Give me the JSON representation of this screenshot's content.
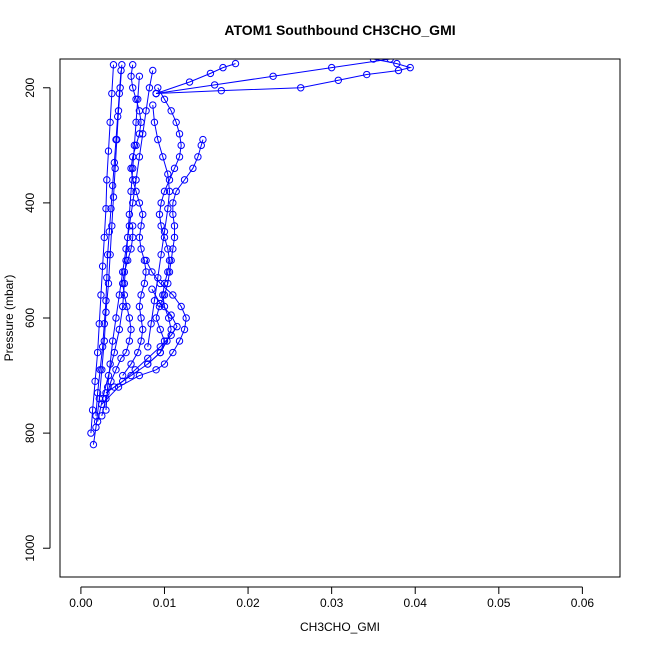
{
  "chart_data": {
    "type": "scatter",
    "title": "ATOM1 Southbound CH3CHO_GMI",
    "xlabel": "CH3CHO_GMI",
    "ylabel": "Pressure (mbar)",
    "xlim": [
      -0.0025,
      0.0645
    ],
    "ylim": [
      1050,
      150
    ],
    "y_reversed": true,
    "x_ticks": [
      0.0,
      0.01,
      0.02,
      0.03,
      0.04,
      0.05,
      0.06
    ],
    "x_tick_labels": [
      "0.00",
      "0.01",
      "0.02",
      "0.03",
      "0.04",
      "0.05",
      "0.06"
    ],
    "y_ticks": [
      200,
      400,
      600,
      800,
      1000
    ],
    "y_tick_labels": [
      "200",
      "400",
      "600",
      "800",
      "1000"
    ],
    "grid": false,
    "marker": "open-circle",
    "color": "#0000ff",
    "series": [
      {
        "points": [
          [
            0.0015,
            820
          ],
          [
            0.0018,
            790
          ],
          [
            0.0022,
            740
          ],
          [
            0.0025,
            690
          ],
          [
            0.0028,
            640
          ],
          [
            0.003,
            590
          ],
          [
            0.0033,
            540
          ],
          [
            0.0035,
            490
          ],
          [
            0.0037,
            440
          ],
          [
            0.0039,
            390
          ],
          [
            0.0041,
            340
          ],
          [
            0.0043,
            290
          ],
          [
            0.0045,
            240
          ],
          [
            0.0047,
            200
          ],
          [
            0.0049,
            160
          ]
        ]
      },
      {
        "points": [
          [
            0.0012,
            800
          ],
          [
            0.0014,
            760
          ],
          [
            0.0017,
            710
          ],
          [
            0.002,
            660
          ],
          [
            0.0022,
            610
          ],
          [
            0.0024,
            560
          ],
          [
            0.0026,
            510
          ],
          [
            0.0028,
            460
          ],
          [
            0.003,
            410
          ],
          [
            0.0031,
            360
          ],
          [
            0.0033,
            310
          ],
          [
            0.0035,
            260
          ],
          [
            0.0037,
            210
          ],
          [
            0.0039,
            160
          ]
        ]
      },
      {
        "points": [
          [
            0.002,
            780
          ],
          [
            0.0026,
            740
          ],
          [
            0.0033,
            700
          ],
          [
            0.004,
            660
          ],
          [
            0.0046,
            620
          ],
          [
            0.005,
            580
          ],
          [
            0.0052,
            540
          ],
          [
            0.0054,
            500
          ],
          [
            0.0056,
            460
          ],
          [
            0.0058,
            420
          ],
          [
            0.006,
            380
          ],
          [
            0.0062,
            340
          ],
          [
            0.0064,
            300
          ],
          [
            0.0066,
            260
          ],
          [
            0.0068,
            220
          ],
          [
            0.007,
            180
          ]
        ]
      },
      {
        "points": [
          [
            0.0025,
            750
          ],
          [
            0.0045,
            720
          ],
          [
            0.007,
            700
          ],
          [
            0.009,
            690
          ],
          [
            0.01,
            680
          ],
          [
            0.011,
            660
          ],
          [
            0.0118,
            640
          ],
          [
            0.0124,
            620
          ],
          [
            0.0126,
            600
          ],
          [
            0.012,
            580
          ],
          [
            0.011,
            560
          ],
          [
            0.0095,
            540
          ],
          [
            0.0085,
            520
          ],
          [
            0.0078,
            500
          ]
        ]
      },
      {
        "points": [
          [
            0.003,
            730
          ],
          [
            0.005,
            710
          ],
          [
            0.0065,
            690
          ],
          [
            0.008,
            670
          ],
          [
            0.0095,
            650
          ],
          [
            0.0108,
            630
          ],
          [
            0.0115,
            615
          ],
          [
            0.0108,
            595
          ],
          [
            0.0095,
            575
          ],
          [
            0.0085,
            550
          ]
        ]
      },
      {
        "points": [
          [
            0.008,
            680
          ],
          [
            0.0095,
            660
          ],
          [
            0.0103,
            640
          ],
          [
            0.0108,
            620
          ],
          [
            0.0105,
            600
          ],
          [
            0.01,
            580
          ],
          [
            0.0098,
            560
          ],
          [
            0.01,
            540
          ],
          [
            0.0104,
            520
          ],
          [
            0.0106,
            500
          ],
          [
            0.0104,
            480
          ],
          [
            0.01,
            460
          ],
          [
            0.0096,
            440
          ],
          [
            0.0094,
            420
          ],
          [
            0.0096,
            400
          ],
          [
            0.01,
            380
          ],
          [
            0.0106,
            360
          ],
          [
            0.0112,
            340
          ],
          [
            0.0118,
            320
          ],
          [
            0.012,
            300
          ],
          [
            0.0118,
            280
          ],
          [
            0.0114,
            260
          ],
          [
            0.0108,
            240
          ],
          [
            0.01,
            220
          ],
          [
            0.0092,
            200
          ]
        ]
      },
      {
        "points": [
          [
            0.004,
            720
          ],
          [
            0.006,
            700
          ],
          [
            0.008,
            680
          ],
          [
            0.0095,
            660
          ],
          [
            0.01,
            640
          ],
          [
            0.0095,
            620
          ],
          [
            0.009,
            600
          ],
          [
            0.0094,
            580
          ],
          [
            0.01,
            560
          ],
          [
            0.0104,
            540
          ],
          [
            0.0106,
            520
          ],
          [
            0.0108,
            500
          ],
          [
            0.011,
            480
          ],
          [
            0.0112,
            460
          ],
          [
            0.0112,
            440
          ],
          [
            0.011,
            420
          ],
          [
            0.011,
            400
          ],
          [
            0.0114,
            380
          ],
          [
            0.0124,
            360
          ],
          [
            0.0134,
            340
          ],
          [
            0.014,
            320
          ],
          [
            0.0144,
            300
          ],
          [
            0.0146,
            290
          ]
        ]
      },
      {
        "points": [
          [
            0.005,
            700
          ],
          [
            0.006,
            680
          ],
          [
            0.0068,
            660
          ],
          [
            0.0072,
            640
          ],
          [
            0.0074,
            620
          ],
          [
            0.0072,
            600
          ],
          [
            0.007,
            580
          ],
          [
            0.0072,
            560
          ],
          [
            0.0076,
            540
          ],
          [
            0.0078,
            520
          ],
          [
            0.0076,
            500
          ],
          [
            0.0072,
            480
          ],
          [
            0.007,
            460
          ],
          [
            0.0072,
            440
          ],
          [
            0.0074,
            420
          ],
          [
            0.007,
            400
          ],
          [
            0.0066,
            380
          ],
          [
            0.0062,
            360
          ],
          [
            0.006,
            340
          ],
          [
            0.0062,
            320
          ],
          [
            0.0066,
            300
          ],
          [
            0.007,
            280
          ],
          [
            0.0072,
            260
          ],
          [
            0.007,
            240
          ],
          [
            0.0066,
            220
          ],
          [
            0.0062,
            200
          ],
          [
            0.006,
            180
          ],
          [
            0.0062,
            160
          ]
        ]
      },
      {
        "points": [
          [
            0.003,
            760
          ],
          [
            0.0032,
            720
          ],
          [
            0.0035,
            680
          ],
          [
            0.0038,
            640
          ],
          [
            0.0042,
            600
          ],
          [
            0.0046,
            560
          ],
          [
            0.005,
            520
          ],
          [
            0.0054,
            480
          ],
          [
            0.0058,
            440
          ],
          [
            0.0062,
            400
          ],
          [
            0.0066,
            360
          ],
          [
            0.007,
            320
          ],
          [
            0.0074,
            280
          ],
          [
            0.0078,
            240
          ],
          [
            0.0082,
            200
          ],
          [
            0.0086,
            170
          ]
        ]
      },
      {
        "points": [
          [
            0.0018,
            770
          ],
          [
            0.002,
            730
          ],
          [
            0.0023,
            690
          ],
          [
            0.0026,
            650
          ],
          [
            0.0028,
            610
          ],
          [
            0.003,
            570
          ],
          [
            0.0031,
            530
          ],
          [
            0.0032,
            490
          ],
          [
            0.0034,
            450
          ],
          [
            0.0036,
            410
          ],
          [
            0.0038,
            370
          ],
          [
            0.004,
            330
          ],
          [
            0.0042,
            290
          ],
          [
            0.0044,
            250
          ],
          [
            0.0046,
            210
          ],
          [
            0.0048,
            170
          ]
        ]
      },
      {
        "points": [
          [
            0.008,
            650
          ],
          [
            0.0084,
            610
          ],
          [
            0.0088,
            570
          ],
          [
            0.0092,
            530
          ],
          [
            0.0096,
            490
          ],
          [
            0.01,
            450
          ],
          [
            0.0104,
            410
          ],
          [
            0.0106,
            380
          ],
          [
            0.0104,
            350
          ],
          [
            0.0098,
            320
          ],
          [
            0.0092,
            290
          ],
          [
            0.0088,
            260
          ],
          [
            0.0086,
            230
          ]
        ]
      },
      {
        "points": [
          [
            0.0025,
            770
          ],
          [
            0.003,
            740
          ],
          [
            0.0036,
            710
          ],
          [
            0.0042,
            690
          ],
          [
            0.0048,
            670
          ],
          [
            0.0054,
            660
          ],
          [
            0.0058,
            640
          ],
          [
            0.006,
            620
          ],
          [
            0.0058,
            600
          ],
          [
            0.0055,
            580
          ],
          [
            0.0052,
            560
          ],
          [
            0.005,
            540
          ],
          [
            0.0052,
            520
          ],
          [
            0.0056,
            500
          ],
          [
            0.006,
            480
          ],
          [
            0.0062,
            460
          ],
          [
            0.0062,
            440
          ]
        ]
      },
      {
        "points": [
          [
            0.009,
            210
          ],
          [
            0.0168,
            205
          ],
          [
            0.0263,
            200
          ],
          [
            0.0308,
            187
          ],
          [
            0.0342,
            177
          ],
          [
            0.038,
            170
          ],
          [
            0.0394,
            165
          ],
          [
            0.0378,
            158
          ],
          [
            0.035,
            150
          ]
        ]
      },
      {
        "points": [
          [
            0.009,
            210
          ],
          [
            0.013,
            190
          ],
          [
            0.0155,
            175
          ],
          [
            0.017,
            165
          ],
          [
            0.0185,
            158
          ]
        ]
      },
      {
        "points": [
          [
            0.009,
            210
          ],
          [
            0.016,
            195
          ],
          [
            0.023,
            180
          ],
          [
            0.03,
            165
          ],
          [
            0.037,
            150
          ]
        ]
      }
    ]
  }
}
